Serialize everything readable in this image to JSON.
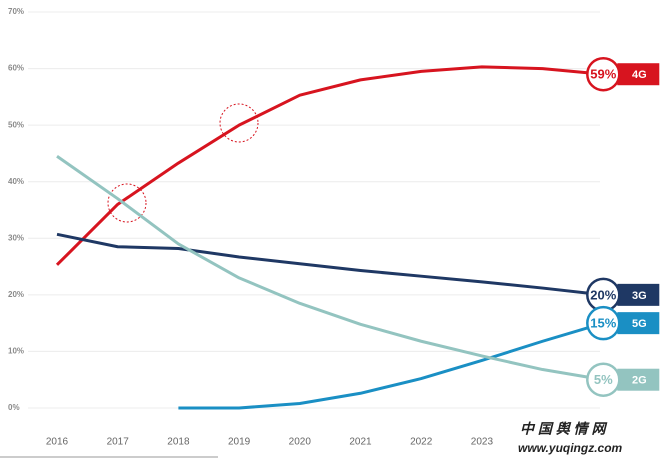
{
  "chart_data": {
    "type": "line",
    "categories": [
      "2016",
      "2017",
      "2018",
      "2019",
      "2020",
      "2021",
      "2022",
      "2023",
      null,
      null
    ],
    "series": [
      {
        "name": "4G",
        "color": "#d7141f",
        "values": [
          25.3,
          36,
          43.3,
          50,
          55.3,
          58,
          59.5,
          60.3,
          60,
          59
        ],
        "value_labels": [
          null,
          null,
          null,
          null,
          null,
          null,
          null,
          null,
          null,
          "59%"
        ]
      },
      {
        "name": "3G",
        "color": "#1f3864",
        "values": [
          30.7,
          28.5,
          28.2,
          26.7,
          25.5,
          24.3,
          23.3,
          22.3,
          21.2,
          20
        ],
        "value_labels": [
          null,
          null,
          null,
          null,
          null,
          null,
          null,
          null,
          null,
          "20%"
        ]
      },
      {
        "name": "5G",
        "color": "#1a8fc4",
        "values": [
          null,
          null,
          0,
          0,
          0.8,
          2.6,
          5.2,
          8.4,
          11.8,
          15
        ],
        "value_labels": [
          null,
          null,
          null,
          null,
          null,
          null,
          null,
          null,
          null,
          "15%"
        ]
      },
      {
        "name": "2G",
        "color": "#93c4c0",
        "values": [
          44.5,
          37,
          29,
          23,
          18.5,
          14.8,
          11.8,
          9.2,
          6.8,
          5
        ],
        "value_labels": [
          null,
          null,
          null,
          null,
          null,
          null,
          null,
          null,
          null,
          "5%"
        ]
      }
    ],
    "ylim": [
      0,
      70
    ],
    "yticks": [
      {
        "value": 0,
        "label": "0%"
      },
      {
        "value": 10,
        "label": "10%"
      },
      {
        "value": 20,
        "label": "20%"
      },
      {
        "value": 30,
        "label": "30%"
      },
      {
        "value": 40,
        "label": "40%"
      },
      {
        "value": 50,
        "label": "50%"
      },
      {
        "value": 60,
        "label": "60%"
      },
      {
        "value": 70,
        "label": "70%"
      }
    ],
    "grid": true
  },
  "watermark": {
    "title": "中 国 舆 情 网",
    "url": "www.yuqingz.com"
  }
}
